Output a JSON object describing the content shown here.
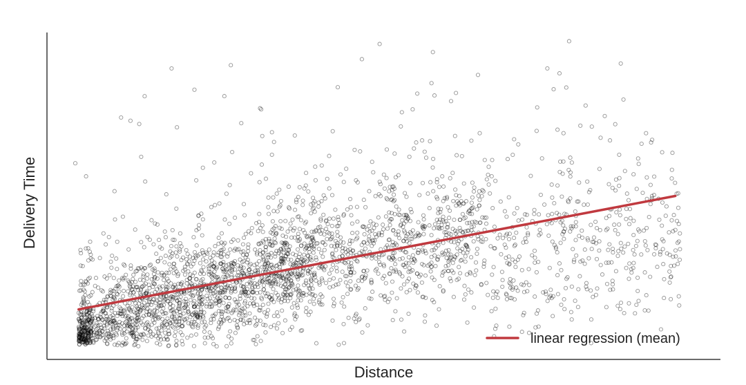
{
  "chart_data": {
    "type": "scatter",
    "title": "",
    "xlabel": "Distance",
    "ylabel": "Delivery Time",
    "xlim": [
      0,
      1
    ],
    "ylim": [
      0,
      1
    ],
    "show_tick_labels": false,
    "grid": false,
    "legend_placement": "bottom-right",
    "point_style": "hollow circle",
    "point_color": "#000000",
    "point_count_approx": 3000,
    "regression": {
      "label": "linear regression (mean)",
      "color": "#c0393f",
      "start": [
        0.047,
        0.153
      ],
      "end": [
        0.933,
        0.5
      ]
    },
    "scatter_profile": {
      "note_free": true,
      "bands": [
        {
          "x_range": [
            0.047,
            0.4
          ],
          "share": 0.62,
          "y_center_at_start": 0.08,
          "slope": 0.62,
          "spread": 0.085
        },
        {
          "x_range": [
            0.4,
            0.65
          ],
          "share": 0.24,
          "y_center_at_start": 0.3,
          "slope": 0.3,
          "spread": 0.1
        },
        {
          "x_range": [
            0.65,
            0.94
          ],
          "share": 0.14,
          "y_center_at_start": 0.33,
          "slope": 0.15,
          "spread": 0.12
        }
      ],
      "outliers": [
        [
          0.494,
          0.965
        ],
        [
          0.573,
          0.94
        ],
        [
          0.185,
          0.89
        ],
        [
          0.273,
          0.9
        ],
        [
          0.743,
          0.89
        ],
        [
          0.761,
          0.875
        ],
        [
          0.852,
          0.905
        ],
        [
          0.219,
          0.825
        ],
        [
          0.571,
          0.845
        ],
        [
          0.145,
          0.805
        ],
        [
          0.6,
          0.79
        ],
        [
          0.856,
          0.795
        ],
        [
          0.543,
          0.765
        ],
        [
          0.318,
          0.765
        ],
        [
          0.11,
          0.74
        ],
        [
          0.137,
          0.72
        ],
        [
          0.124,
          0.73
        ],
        [
          0.193,
          0.71
        ],
        [
          0.792,
          0.715
        ],
        [
          0.809,
          0.712
        ],
        [
          0.334,
          0.695
        ],
        [
          0.368,
          0.685
        ],
        [
          0.767,
          0.692
        ],
        [
          0.836,
          0.67
        ],
        [
          0.557,
          0.67
        ],
        [
          0.042,
          0.6
        ],
        [
          0.029,
          0.61
        ],
        [
          0.65,
          0.61
        ],
        [
          0.661,
          0.61
        ],
        [
          0.058,
          0.56
        ],
        [
          0.963,
          0.57
        ],
        [
          0.928,
          0.58
        ],
        [
          0.845,
          0.55
        ],
        [
          0.959,
          0.38
        ],
        [
          0.904,
          0.34
        ],
        [
          0.845,
          0.27
        ],
        [
          0.877,
          0.25
        ],
        [
          0.808,
          0.05
        ],
        [
          0.441,
          0.05
        ],
        [
          0.252,
          0.04
        ]
      ]
    }
  }
}
